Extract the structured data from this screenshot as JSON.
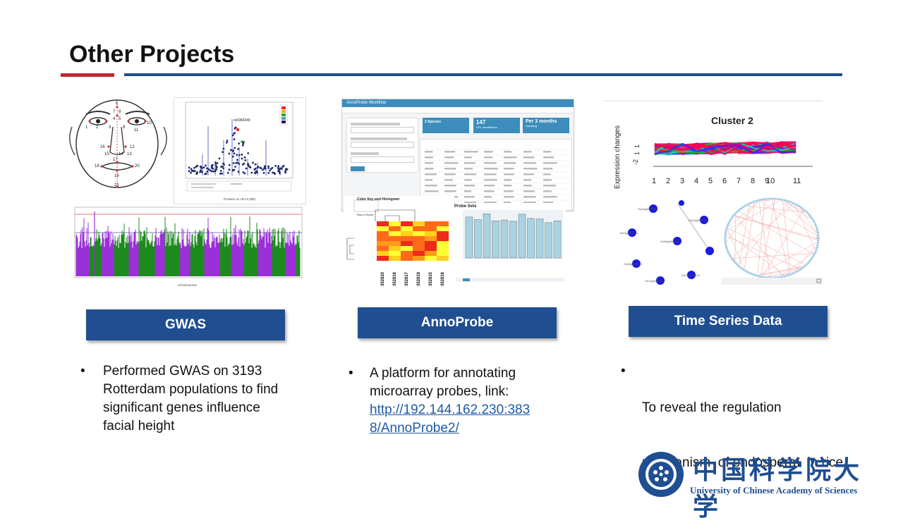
{
  "title": "Other Projects",
  "projects": [
    {
      "label": "GWAS",
      "text": "Performed GWAS on 3193 Rotterdam populations to find significant genes influence facial height",
      "lines": [
        "Performed GWAS on 3193",
        "Rotterdam populations to find",
        "significant genes influence",
        "facial height"
      ]
    },
    {
      "label": "AnnoProbe",
      "lines": [
        "A platform for annotating",
        "microarray probes, link:"
      ],
      "link_lines": [
        "http://192.144.162.230:383",
        "8/AnnoProbe2/"
      ]
    },
    {
      "label": "Time Series Data",
      "lines": [
        "To reveal the regulation",
        "mechanism  of endosperm  in rice"
      ]
    }
  ],
  "bullet": "•",
  "gwas_face": {
    "landmarks": [
      "1",
      "2",
      "3",
      "4",
      "5",
      "6",
      "7",
      "8",
      "9",
      "10",
      "11",
      "12",
      "13",
      "14",
      "15",
      "16",
      "17",
      "18",
      "19",
      "20",
      "21"
    ]
  },
  "annoprobe_shot": {
    "app_title": "AnnoProbe Workflow",
    "stat1_title": "2 Species",
    "stat2_value": "147",
    "stat2_sub": "GPL annotations",
    "stat3_value": "Per 3 months",
    "stat3_sub": "Updating",
    "color_key": "Color Key and Histogram",
    "row_z": "Row Z-Score",
    "probe_sets": "Probe Sets",
    "heatmap_cols": [
      "352820",
      "352818",
      "352817",
      "352819",
      "352815",
      "352816"
    ]
  },
  "time_series_shot": {
    "chart_title": "Cluster 2",
    "ylabel": "Expression changes",
    "x_ticks": [
      "1",
      "2",
      "3",
      "4",
      "5",
      "6",
      "7",
      "8",
      "9",
      "10",
      "11"
    ],
    "y_ticks": [
      "-2",
      "1",
      "1"
    ]
  },
  "logo": {
    "cn": "中国科学院大学",
    "en": "University of  Chinese Academy of Sciences"
  },
  "colors": {
    "accent_blue": "#1f4e91",
    "accent_red": "#c0262c",
    "link": "#1f5aa6"
  }
}
